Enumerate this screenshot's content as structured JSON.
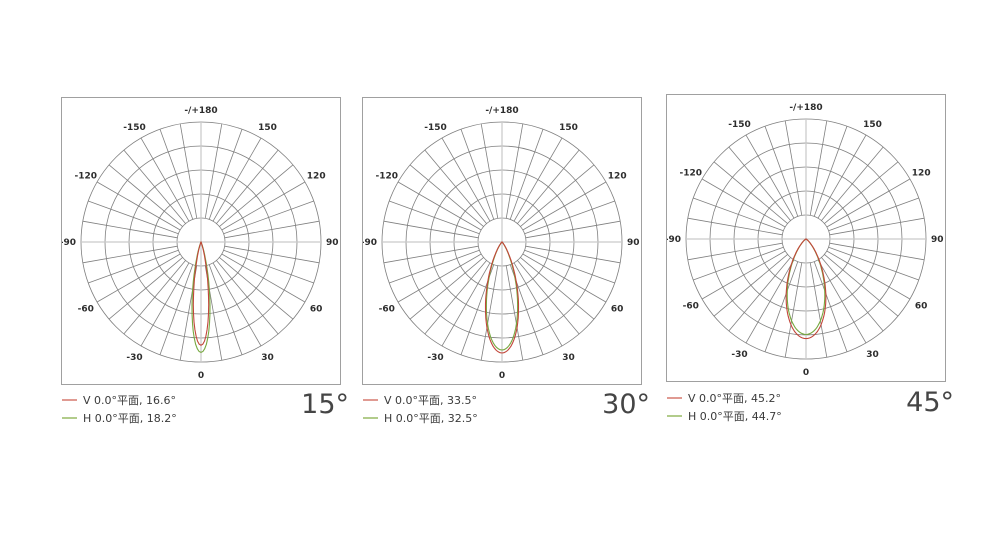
{
  "page": {
    "background": "#ffffff"
  },
  "style": {
    "grid_color": "#7f7f7f",
    "axis_light_color": "#c9c9c9",
    "border_color": "#a0a0a0",
    "tick_label_color": "#2d2d2d",
    "legend_text_color": "#3a3a3a",
    "big_label_color": "#454545"
  },
  "chart_data": [
    {
      "type": "polar",
      "big_label": "15°",
      "rings_fraction": [
        0.2,
        0.4,
        0.6,
        0.8,
        1.0
      ],
      "angle_labels": [
        {
          "text": "-/+180",
          "angle": 180
        },
        {
          "text": "-150",
          "angle": -150
        },
        {
          "text": "150",
          "angle": 150
        },
        {
          "text": "-120",
          "angle": -120
        },
        {
          "text": "120",
          "angle": 120
        },
        {
          "text": "-90",
          "angle": -90
        },
        {
          "text": "90",
          "angle": 90
        },
        {
          "text": "-60",
          "angle": -60
        },
        {
          "text": "60",
          "angle": 60
        },
        {
          "text": "-30",
          "angle": -30
        },
        {
          "text": "30",
          "angle": 30
        },
        {
          "text": "0",
          "angle": 0
        }
      ],
      "series": [
        {
          "name": "V",
          "legend": "V 0.0°平面, 16.6°",
          "beam_angle_deg": 16.6,
          "peak_fraction": 0.86,
          "color": "#c2463a",
          "swatch_color": "#e09a92"
        },
        {
          "name": "H",
          "legend": "H 0.0°平面, 18.2°",
          "beam_angle_deg": 18.2,
          "peak_fraction": 0.92,
          "color": "#76a83f",
          "swatch_color": "#b2cc8b"
        }
      ]
    },
    {
      "type": "polar",
      "big_label": "30°",
      "rings_fraction": [
        0.2,
        0.4,
        0.6,
        0.8,
        1.0
      ],
      "angle_labels": [
        {
          "text": "-/+180",
          "angle": 180
        },
        {
          "text": "-150",
          "angle": -150
        },
        {
          "text": "150",
          "angle": 150
        },
        {
          "text": "-120",
          "angle": -120
        },
        {
          "text": "120",
          "angle": 120
        },
        {
          "text": "-90",
          "angle": -90
        },
        {
          "text": "90",
          "angle": 90
        },
        {
          "text": "-60",
          "angle": -60
        },
        {
          "text": "60",
          "angle": 60
        },
        {
          "text": "-30",
          "angle": -30
        },
        {
          "text": "30",
          "angle": 30
        },
        {
          "text": "0",
          "angle": 0
        }
      ],
      "series": [
        {
          "name": "V",
          "legend": "V 0.0°平面, 33.5°",
          "beam_angle_deg": 33.5,
          "peak_fraction": 0.925,
          "color": "#c2463a",
          "swatch_color": "#e09a92"
        },
        {
          "name": "H",
          "legend": "H 0.0°平面, 32.5°",
          "beam_angle_deg": 32.5,
          "peak_fraction": 0.9,
          "color": "#76a83f",
          "swatch_color": "#b2cc8b"
        }
      ]
    },
    {
      "type": "polar",
      "big_label": "45°",
      "rings_fraction": [
        0.2,
        0.4,
        0.6,
        0.8,
        1.0
      ],
      "angle_labels": [
        {
          "text": "-/+180",
          "angle": 180
        },
        {
          "text": "-150",
          "angle": -150
        },
        {
          "text": "150",
          "angle": 150
        },
        {
          "text": "-120",
          "angle": -120
        },
        {
          "text": "120",
          "angle": 120
        },
        {
          "text": "-90",
          "angle": -90
        },
        {
          "text": "90",
          "angle": 90
        },
        {
          "text": "-60",
          "angle": -60
        },
        {
          "text": "60",
          "angle": 60
        },
        {
          "text": "-30",
          "angle": -30
        },
        {
          "text": "30",
          "angle": 30
        },
        {
          "text": "0",
          "angle": 0
        }
      ],
      "series": [
        {
          "name": "V",
          "legend": "V 0.0°平面, 45.2°",
          "beam_angle_deg": 45.2,
          "peak_fraction": 0.83,
          "color": "#c2463a",
          "swatch_color": "#e09a92"
        },
        {
          "name": "H",
          "legend": "H 0.0°平面, 44.7°",
          "beam_angle_deg": 44.7,
          "peak_fraction": 0.795,
          "color": "#76a83f",
          "swatch_color": "#b2cc8b"
        }
      ]
    }
  ]
}
